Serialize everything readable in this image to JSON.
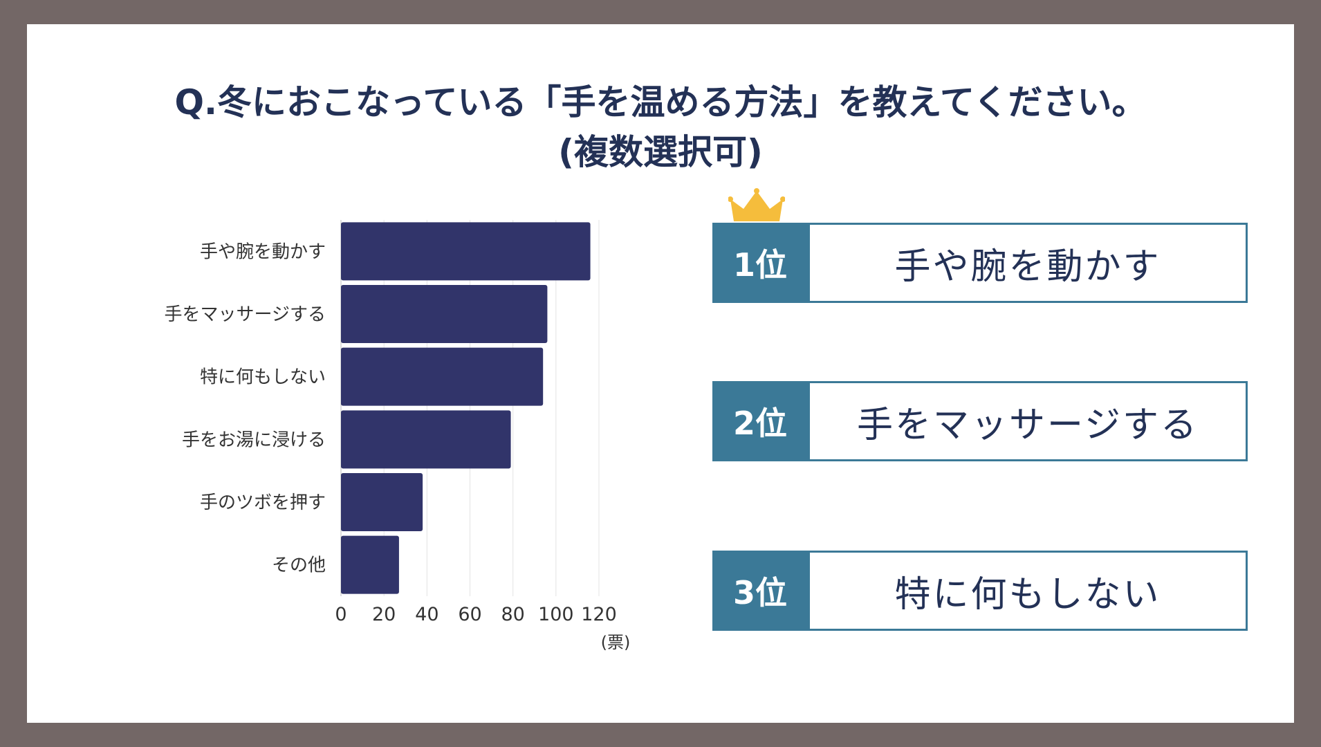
{
  "title": {
    "line1": "Q.冬におこなっている「手を温める方法」を教えてください。",
    "line2": "(複数選択可)"
  },
  "chart_data": {
    "type": "bar",
    "orientation": "horizontal",
    "categories": [
      "手や腕を動かす",
      "手をマッサージする",
      "特に何もしない",
      "手をお湯に浸ける",
      "手のツボを押す",
      "その他"
    ],
    "values": [
      116,
      96,
      94,
      79,
      38,
      27
    ],
    "xlim": [
      0,
      120
    ],
    "xticks": [
      "0",
      "20",
      "40",
      "60",
      "80",
      "100",
      "120"
    ],
    "xlabel": "(票)",
    "bar_color": "#31346a",
    "grid": true
  },
  "ranking": [
    {
      "rank": "1位",
      "label": "手や腕を動かす"
    },
    {
      "rank": "2位",
      "label": "手をマッサージする"
    },
    {
      "rank": "3位",
      "label": "特に何もしない"
    }
  ],
  "colors": {
    "frame": "#736766",
    "title": "#233156",
    "rank_accent": "#3b7997",
    "crown": "#f5bd3c",
    "axis_text": "#333333"
  }
}
